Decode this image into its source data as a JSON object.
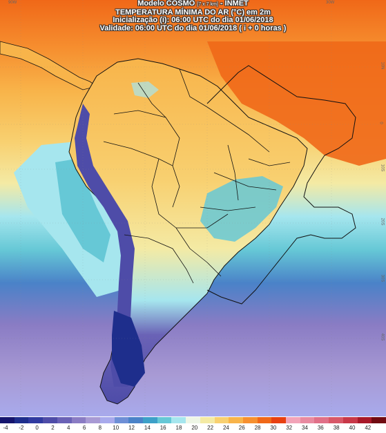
{
  "header": {
    "title_main": "Modelo COSMO",
    "title_res": "[7 x 7 km]",
    "title_org": "- INMET",
    "subtitle": "TEMPERATURA MÍNIMA DO AR (°C) em 2m",
    "init": "Inicialização (i): 06:00 UTC do dia 01/06/2018",
    "valid": "Validade: 06:00 UTC do dia 01/06/2018 ( i + 0 horas )"
  },
  "lon_labels": [
    "90W",
    "30W"
  ],
  "lat_labels": [
    "10N",
    "0",
    "10S",
    "20S",
    "30S",
    "40S"
  ],
  "colors": {
    "palette": [
      "#15156e",
      "#1e2e8c",
      "#303aa0",
      "#4e4ca8",
      "#6a62b6",
      "#8a7cc4",
      "#a89ad4",
      "#a8aaec",
      "#6e8fd6",
      "#4a82c8",
      "#3da0c8",
      "#66c8d6",
      "#a6e6ee",
      "#eef6e6",
      "#f4eaa4",
      "#f8d070",
      "#f8b44a",
      "#f69030",
      "#f06818",
      "#e84010",
      "#f2a4b8",
      "#e88aa0",
      "#e07088",
      "#d85868",
      "#c83848",
      "#a81828",
      "#700a10"
    ],
    "land_border": "#111111"
  },
  "legend": {
    "ticks": [
      "-4",
      "-2",
      "0",
      "2",
      "4",
      "6",
      "8",
      "10",
      "12",
      "14",
      "16",
      "18",
      "20",
      "22",
      "24",
      "26",
      "28",
      "30",
      "32",
      "34",
      "36",
      "38",
      "40",
      "42"
    ],
    "unit": "°C"
  }
}
